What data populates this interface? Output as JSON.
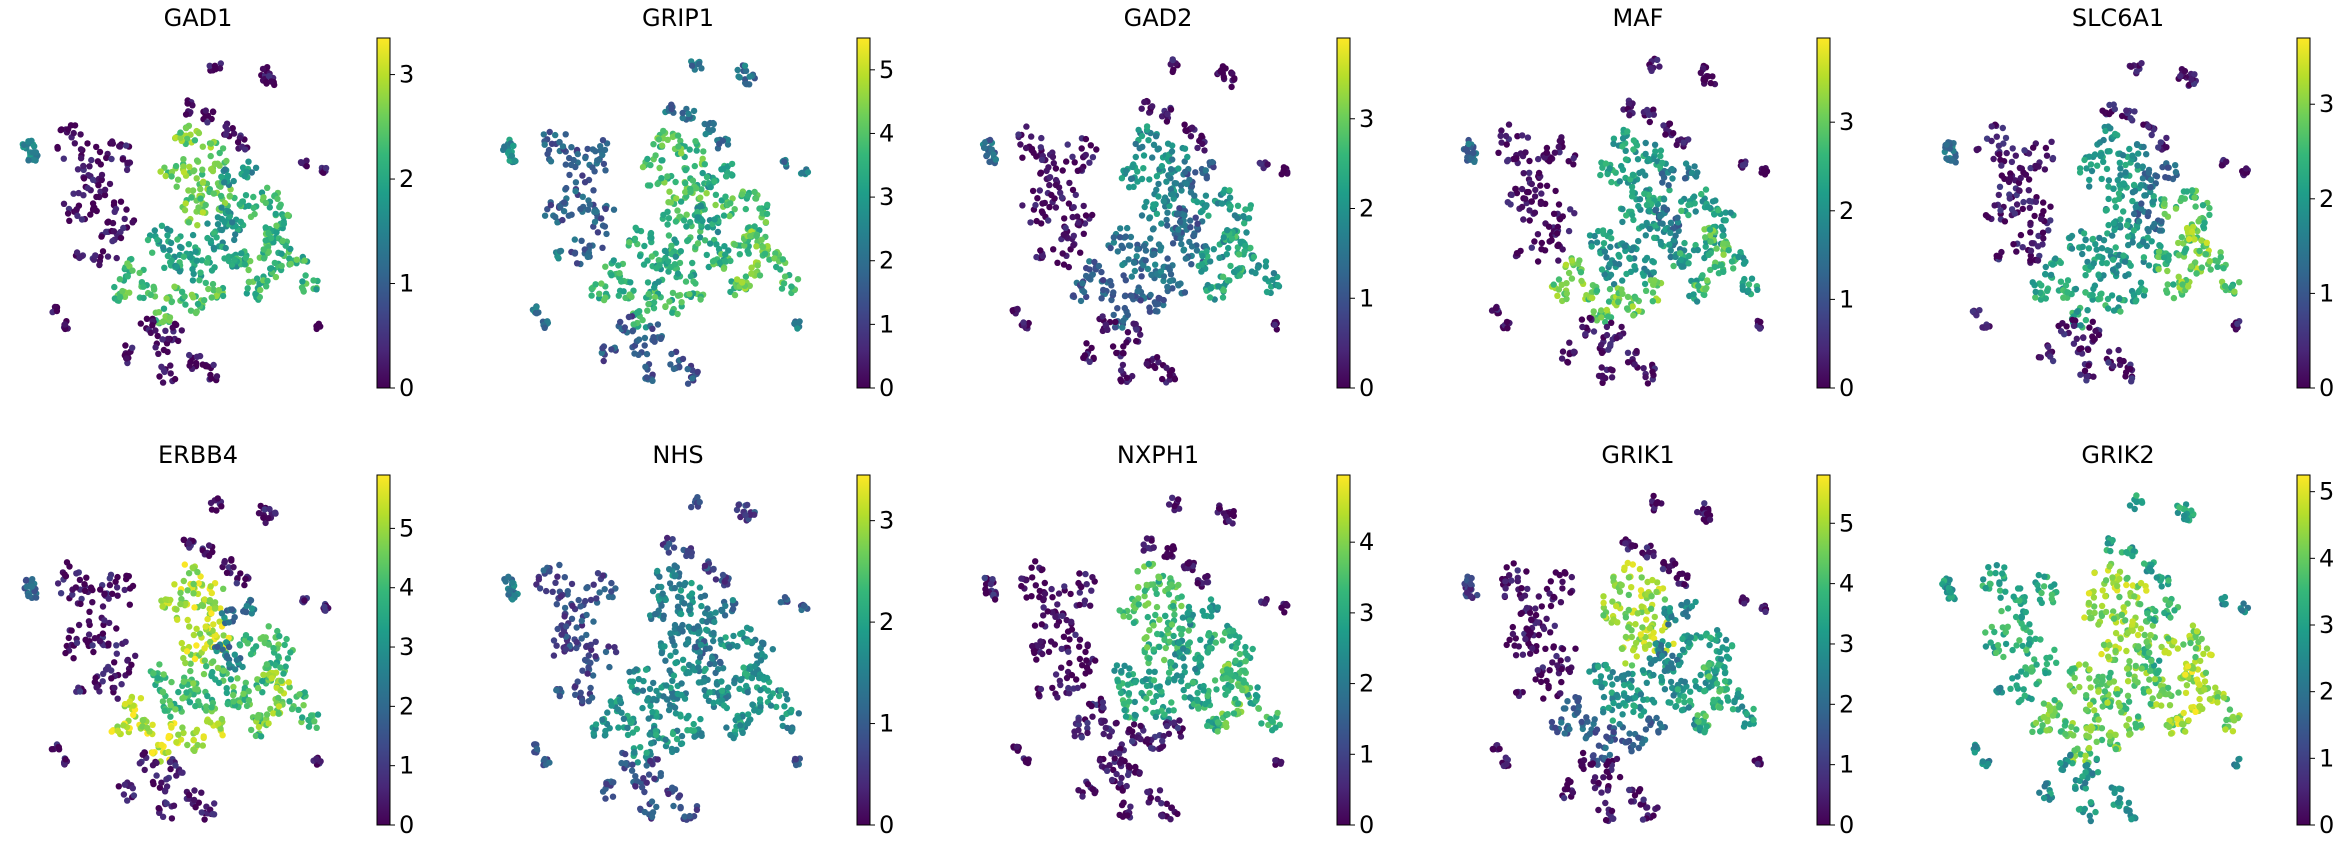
{
  "figure": {
    "kind": "umap-gene-expression-grid",
    "colormap": "viridis",
    "viridis_stops": [
      "#440154",
      "#482878",
      "#3e4989",
      "#31688e",
      "#26828e",
      "#1f9e89",
      "#35b779",
      "#6ece58",
      "#b5de2b",
      "#fde725"
    ]
  },
  "chart_data": [
    {
      "type": "scatter",
      "title": "GAD1",
      "colorbar": {
        "vmin": 0,
        "vmax": 3.35,
        "ticks": [
          0,
          1,
          2,
          3
        ],
        "tick_labels": [
          "0",
          "1",
          "2",
          "3"
        ]
      },
      "cluster_values": [
        0.1,
        2.6,
        1.9,
        2.4,
        2.2,
        0.1,
        0.1,
        1.6,
        0.1,
        1.7,
        2.2
      ]
    },
    {
      "type": "scatter",
      "title": "GRIP1",
      "colorbar": {
        "vmin": 0,
        "vmax": 5.5,
        "ticks": [
          0,
          1,
          2,
          3,
          4,
          5
        ],
        "tick_labels": [
          "0",
          "1",
          "2",
          "3",
          "4",
          "5"
        ]
      },
      "cluster_values": [
        1.6,
        3.9,
        3.4,
        3.6,
        3.8,
        2.0,
        1.5,
        2.6,
        2.2,
        3.0,
        4.2
      ]
    },
    {
      "type": "scatter",
      "title": "GAD2",
      "colorbar": {
        "vmin": 0,
        "vmax": 3.9,
        "ticks": [
          0,
          1,
          2,
          3
        ],
        "tick_labels": [
          "0",
          "1",
          "2",
          "3"
        ]
      },
      "cluster_values": [
        0.1,
        1.9,
        1.4,
        1.2,
        2.1,
        0.1,
        0.1,
        1.4,
        0.1,
        1.2,
        2.4
      ]
    },
    {
      "type": "scatter",
      "title": "MAF",
      "colorbar": {
        "vmin": 0,
        "vmax": 3.95,
        "ticks": [
          0,
          1,
          2,
          3
        ],
        "tick_labels": [
          "0",
          "1",
          "2",
          "3"
        ]
      },
      "cluster_values": [
        0.1,
        2.2,
        2.0,
        3.0,
        2.3,
        0.1,
        0.1,
        1.4,
        0.1,
        1.5,
        2.8
      ]
    },
    {
      "type": "scatter",
      "title": "SLC6A1",
      "colorbar": {
        "vmin": 0,
        "vmax": 3.7,
        "ticks": [
          0,
          1,
          2,
          3
        ],
        "tick_labels": [
          "0",
          "1",
          "2",
          "3"
        ]
      },
      "cluster_values": [
        0.2,
        1.9,
        2.0,
        2.2,
        2.6,
        0.2,
        0.2,
        1.5,
        0.3,
        1.3,
        3.0
      ]
    },
    {
      "type": "scatter",
      "title": "ERBB4",
      "colorbar": {
        "vmin": 0,
        "vmax": 5.9,
        "ticks": [
          0,
          1,
          2,
          3,
          4,
          5
        ],
        "tick_labels": [
          "0",
          "1",
          "2",
          "3",
          "4",
          "5"
        ]
      },
      "cluster_values": [
        0.3,
        5.2,
        4.1,
        5.4,
        4.0,
        0.3,
        0.3,
        2.0,
        0.4,
        2.4,
        4.8
      ]
    },
    {
      "type": "scatter",
      "title": "NHS",
      "colorbar": {
        "vmin": 0,
        "vmax": 3.45,
        "ticks": [
          0,
          1,
          2,
          3
        ],
        "tick_labels": [
          "0",
          "1",
          "2",
          "3"
        ]
      },
      "cluster_values": [
        0.8,
        1.6,
        1.7,
        1.8,
        1.7,
        0.7,
        0.8,
        1.4,
        0.9,
        1.3,
        1.9
      ]
    },
    {
      "type": "scatter",
      "title": "NXPH1",
      "colorbar": {
        "vmin": 0,
        "vmax": 4.95,
        "ticks": [
          0,
          1,
          2,
          3,
          4
        ],
        "tick_labels": [
          "0",
          "1",
          "2",
          "3",
          "4"
        ]
      },
      "cluster_values": [
        0.1,
        3.4,
        2.9,
        0.4,
        3.1,
        0.1,
        0.1,
        0.5,
        0.1,
        2.6,
        3.6
      ]
    },
    {
      "type": "scatter",
      "title": "GRIK1",
      "colorbar": {
        "vmin": 0,
        "vmax": 5.8,
        "ticks": [
          0,
          1,
          2,
          3,
          4,
          5
        ],
        "tick_labels": [
          "0",
          "1",
          "2",
          "3",
          "4",
          "5"
        ]
      },
      "cluster_values": [
        0.2,
        4.9,
        3.0,
        1.8,
        3.2,
        0.2,
        0.2,
        1.0,
        0.2,
        2.6,
        3.8
      ]
    },
    {
      "type": "scatter",
      "title": "GRIK2",
      "colorbar": {
        "vmin": 0,
        "vmax": 5.25,
        "ticks": [
          0,
          1,
          2,
          3,
          4,
          5
        ],
        "tick_labels": [
          "0",
          "1",
          "2",
          "3",
          "4",
          "5"
        ]
      },
      "cluster_values": [
        3.2,
        4.4,
        4.0,
        4.0,
        4.3,
        3.0,
        2.6,
        2.8,
        2.6,
        3.4,
        4.6
      ]
    }
  ]
}
